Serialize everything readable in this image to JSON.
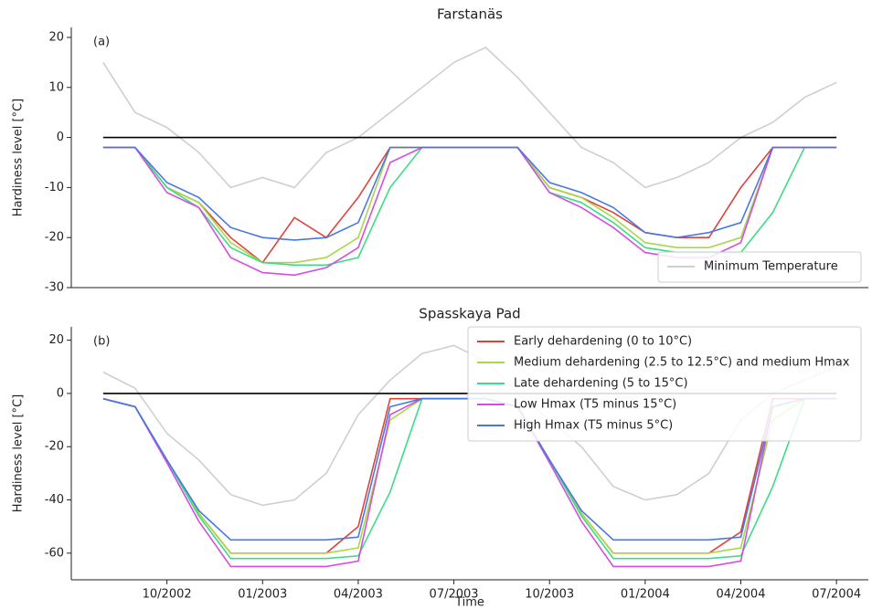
{
  "chart_data": [
    {
      "type": "line",
      "title": "Farstanäs",
      "annotation": "(a)",
      "ylabel": "Hardiness level [°C]",
      "x": [
        "08/2002",
        "09/2002",
        "10/2002",
        "11/2002",
        "12/2002",
        "01/2003",
        "02/2003",
        "03/2003",
        "04/2003",
        "05/2003",
        "06/2003",
        "07/2003",
        "08/2003",
        "09/2003",
        "10/2003",
        "11/2003",
        "12/2003",
        "01/2004",
        "02/2004",
        "03/2004",
        "04/2004",
        "05/2004",
        "06/2004",
        "07/2004"
      ],
      "xlim": [
        "07/2002",
        "08/2004"
      ],
      "ylim": [
        -30,
        22
      ],
      "yticks": [
        -30,
        -20,
        -10,
        0,
        10,
        20
      ],
      "hline": 0,
      "hline_color": "#000000",
      "legend": "lower right",
      "series": [
        {
          "name": "Minimum Temperature",
          "color": "#cfcfcf",
          "values": [
            15,
            5,
            2,
            -3,
            -10,
            -8,
            -10,
            -3,
            0,
            5,
            10,
            15,
            18,
            12,
            5,
            -2,
            -5,
            -10,
            -8,
            -5,
            0,
            3,
            8,
            11
          ]
        },
        {
          "color": "#e0423a",
          "values": [
            -2,
            -2,
            -10,
            -13,
            -20,
            -25,
            -16,
            -20,
            -12,
            -2,
            -2,
            -2,
            -2,
            -2,
            -10,
            -12,
            -15,
            -19,
            -20,
            -20,
            -10,
            -2,
            -2,
            -2
          ]
        },
        {
          "color": "#a8d84a",
          "values": [
            -2,
            -2,
            -10,
            -13,
            -21,
            -25,
            -25,
            -24,
            -20,
            -2,
            -2,
            -2,
            -2,
            -2,
            -10,
            -12,
            -16,
            -21,
            -22,
            -22,
            -20,
            -2,
            -2,
            -2
          ]
        },
        {
          "color": "#3ddc84",
          "values": [
            -2,
            -2,
            -10,
            -14,
            -22,
            -25,
            -25.5,
            -25.5,
            -24,
            -10,
            -2,
            -2,
            -2,
            -2,
            -11,
            -13,
            -17,
            -22,
            -23,
            -23,
            -23,
            -15,
            -2,
            -2
          ]
        },
        {
          "color": "#d34ee0",
          "values": [
            -2,
            -2,
            -11,
            -14,
            -24,
            -27,
            -27.5,
            -26,
            -22,
            -5,
            -2,
            -2,
            -2,
            -2,
            -11,
            -14,
            -18,
            -23,
            -24,
            -24,
            -21,
            -2,
            -2,
            -2
          ]
        },
        {
          "color": "#4a78e0",
          "values": [
            -2,
            -2,
            -9,
            -12,
            -18,
            -20,
            -20.5,
            -20,
            -17,
            -2,
            -2,
            -2,
            -2,
            -2,
            -9,
            -11,
            -14,
            -19,
            -20,
            -19,
            -17,
            -2,
            -2,
            -2
          ]
        }
      ]
    },
    {
      "type": "line",
      "title": "Spasskaya Pad",
      "annotation": "(b)",
      "ylabel": "Hardiness level [°C]",
      "xlabel": "Time",
      "x": [
        "08/2002",
        "09/2002",
        "10/2002",
        "11/2002",
        "12/2002",
        "01/2003",
        "02/2003",
        "03/2003",
        "04/2003",
        "05/2003",
        "06/2003",
        "07/2003",
        "08/2003",
        "09/2003",
        "10/2003",
        "11/2003",
        "12/2003",
        "01/2004",
        "02/2004",
        "03/2004",
        "04/2004",
        "05/2004",
        "06/2004",
        "07/2004"
      ],
      "xlim": [
        "07/2002",
        "08/2004"
      ],
      "xticks": [
        "10/2002",
        "01/2003",
        "04/2003",
        "07/2003",
        "10/2003",
        "01/2004",
        "04/2004",
        "07/2004"
      ],
      "ylim": [
        -70,
        25
      ],
      "yticks": [
        -60,
        -40,
        -20,
        0,
        20
      ],
      "hline": 0,
      "hline_color": "#000000",
      "legend": "upper right",
      "series": [
        {
          "color": "#cfcfcf",
          "values": [
            8,
            2,
            -15,
            -25,
            -38,
            -42,
            -40,
            -30,
            -8,
            5,
            15,
            18,
            12,
            0,
            -10,
            -20,
            -35,
            -40,
            -38,
            -30,
            -10,
            0,
            5,
            10
          ]
        },
        {
          "name": "Early dehardening (0 to 10°C)",
          "color": "#e0423a",
          "values": [
            -2,
            -5,
            -25,
            -45,
            -60,
            -60,
            -60,
            -60,
            -50,
            -2,
            -2,
            -2,
            -2,
            -5,
            -25,
            -45,
            -60,
            -60,
            -60,
            -60,
            -52,
            -2,
            -2,
            -2
          ]
        },
        {
          "name": "Medium dehardening (2.5 to 12.5°C) and medium Hmax",
          "color": "#a8d84a",
          "values": [
            -2,
            -5,
            -25,
            -45,
            -60,
            -60,
            -60,
            -60,
            -58,
            -10,
            -2,
            -2,
            -2,
            -5,
            -25,
            -45,
            -60,
            -60,
            -60,
            -60,
            -58,
            -10,
            -2,
            -2
          ]
        },
        {
          "name": "Late dehardening (5 to 15°C)",
          "color": "#3ddc84",
          "values": [
            -2,
            -5,
            -25,
            -46,
            -62,
            -62,
            -62,
            -62,
            -61,
            -37,
            -2,
            -2,
            -2,
            -5,
            -25,
            -46,
            -62,
            -62,
            -62,
            -62,
            -61,
            -35,
            -2,
            -2
          ]
        },
        {
          "name": "Low Hmax (T5 minus 15°C)",
          "color": "#d34ee0",
          "values": [
            -2,
            -5,
            -26,
            -48,
            -65,
            -65,
            -65,
            -65,
            -63,
            -8,
            -2,
            -2,
            -2,
            -5,
            -26,
            -48,
            -65,
            -65,
            -65,
            -65,
            -63,
            -5,
            -2,
            -2
          ]
        },
        {
          "name": "High Hmax (T5 minus 5°C)",
          "color": "#4a78e0",
          "values": [
            -2,
            -5,
            -25,
            -44,
            -55,
            -55,
            -55,
            -55,
            -54,
            -5,
            -2,
            -2,
            -2,
            -5,
            -25,
            -44,
            -55,
            -55,
            -55,
            -55,
            -54,
            -5,
            -2,
            -2
          ]
        }
      ]
    }
  ]
}
